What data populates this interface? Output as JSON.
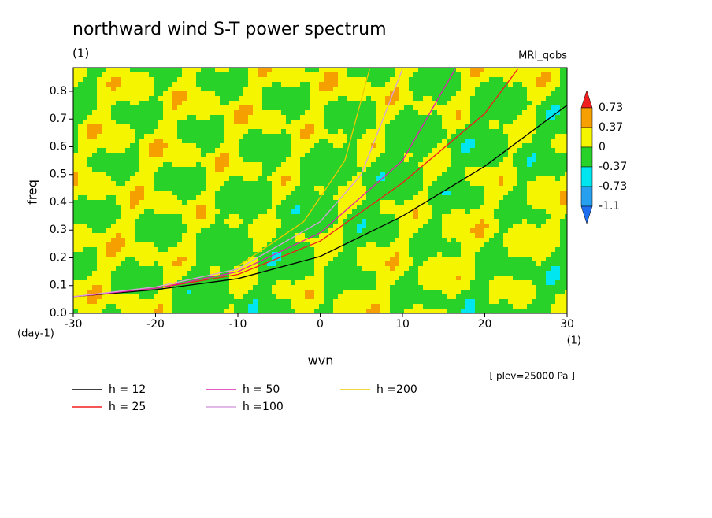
{
  "chart_data": {
    "type": "line",
    "title": "northward wind S-T power spectrum",
    "subtitle": "(1)",
    "model": "MRI_qobs",
    "level_note": "[ plev=25000 Pa ]",
    "x_label": "wvn",
    "y_label": "freq",
    "x_unit": "(1)",
    "y_unit": "(day-1)",
    "xlim": [
      -30,
      30
    ],
    "ylim": [
      0,
      0.885
    ],
    "xticks": [
      -30,
      -20,
      -10,
      0,
      10,
      20,
      30
    ],
    "yticks": [
      {
        "value": 0,
        "label": "0.0"
      },
      0.1,
      0.2,
      0.3,
      0.4,
      0.5,
      0.6,
      0.7,
      0.8
    ],
    "colorbar": {
      "levels": [
        -1.1,
        -0.73,
        -0.37,
        0,
        0.37,
        0.73
      ],
      "colors": [
        "#1e6ef0",
        "#28a0f0",
        "#00e6f0",
        "#28d228",
        "#f5f500",
        "#f5a000",
        "#f01e1e"
      ]
    },
    "series": [
      {
        "name": "h = 12",
        "color": "#000000",
        "x": [
          -30,
          -20,
          -10,
          0,
          10,
          20,
          30
        ],
        "values": [
          0.06,
          0.085,
          0.125,
          0.205,
          0.35,
          0.53,
          0.75
        ]
      },
      {
        "name": "h = 25",
        "color": "#f01e1e",
        "x": [
          -30,
          -20,
          -10,
          0,
          10,
          20,
          24
        ],
        "values": [
          0.06,
          0.09,
          0.14,
          0.26,
          0.47,
          0.72,
          0.88
        ]
      },
      {
        "name": "h = 50",
        "color": "#e020b0",
        "x": [
          -30,
          -20,
          -10,
          0,
          10,
          16.4
        ],
        "values": [
          0.06,
          0.09,
          0.15,
          0.29,
          0.55,
          0.88
        ]
      },
      {
        "name": "h =100",
        "color": "#d8a0e0",
        "x": [
          -30,
          -20,
          -10,
          0,
          5,
          10
        ],
        "values": [
          0.06,
          0.095,
          0.16,
          0.33,
          0.5,
          0.88
        ]
      },
      {
        "name": "h =200",
        "color": "#f0c800",
        "x": [
          -10,
          -2,
          3,
          6
        ],
        "values": [
          0.17,
          0.33,
          0.55,
          0.88
        ]
      }
    ]
  }
}
